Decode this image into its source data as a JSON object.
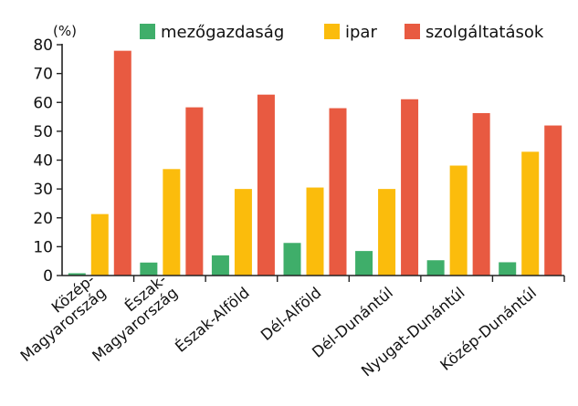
{
  "chart_data": {
    "type": "bar",
    "title": "",
    "xlabel": "",
    "ylabel": "",
    "y_unit": "(%)",
    "ylim": [
      0,
      80
    ],
    "yticks": [
      0,
      10,
      20,
      30,
      40,
      50,
      60,
      70,
      80
    ],
    "grid": false,
    "legend_position": "top",
    "categories": [
      [
        "Közép-",
        "Magyarország"
      ],
      [
        "Észak-",
        "Magyarország"
      ],
      [
        "Észak-Alföld"
      ],
      [
        "Dél-Alföld"
      ],
      [
        "Dél-Dunántúl"
      ],
      [
        "Nyugat-Dunántúl"
      ],
      [
        "Közép-Dunántúl"
      ]
    ],
    "series": [
      {
        "name": "mezőgazdaság",
        "color": "#3fae6a",
        "values": [
          0.8,
          4.5,
          7.0,
          11.3,
          8.5,
          5.3,
          4.6
        ]
      },
      {
        "name": "ipar",
        "color": "#fbbc0c",
        "values": [
          21.3,
          36.9,
          30.0,
          30.5,
          30.0,
          38.1,
          42.9
        ]
      },
      {
        "name": "szolgáltatások",
        "color": "#e85a41",
        "values": [
          77.9,
          58.3,
          62.7,
          58.0,
          61.1,
          56.3,
          52.0
        ]
      }
    ]
  }
}
